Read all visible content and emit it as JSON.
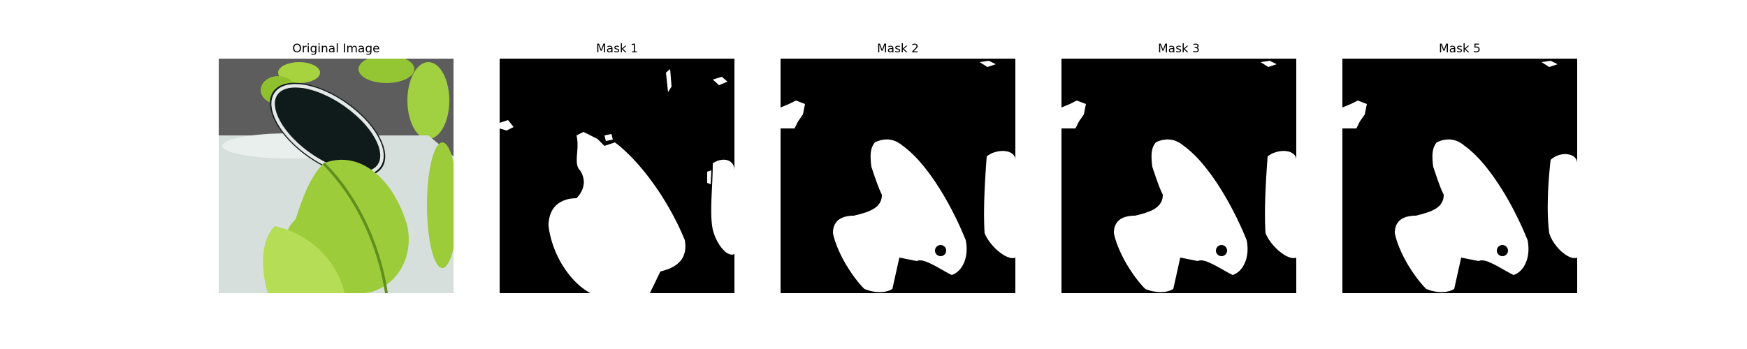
{
  "panels": [
    {
      "title": "Original Image",
      "kind": "photo"
    },
    {
      "title": "Mask 1",
      "kind": "mask"
    },
    {
      "title": "Mask 2",
      "kind": "mask"
    },
    {
      "title": "Mask 3",
      "kind": "mask"
    },
    {
      "title": "Mask 5",
      "kind": "mask"
    }
  ],
  "colors": {
    "mask_background": "#000000",
    "mask_foreground": "#ffffff",
    "leaf": "#9ccc3a",
    "leaf_dark": "#5f8f1c",
    "pot": "#d7dfdc",
    "pot_rim": "#0f1a1a",
    "background": "#5d5d5d"
  }
}
